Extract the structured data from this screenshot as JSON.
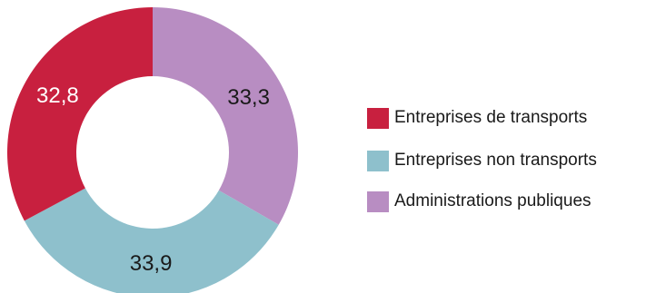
{
  "chart_data": {
    "type": "pie",
    "donut": true,
    "slices": [
      {
        "label": "Administrations publiques",
        "value": 33.3,
        "display": "33,3",
        "color": "#b88dc2",
        "text_color": "#1a1a1a"
      },
      {
        "label": "Entreprises non transports",
        "value": 33.9,
        "display": "33,9",
        "color": "#8ec0cc",
        "text_color": "#1a1a1a"
      },
      {
        "label": "Entreprises de transports",
        "value": 32.8,
        "display": "32,8",
        "color": "#c8203f",
        "text_color": "#ffffff"
      }
    ],
    "legend": {
      "placement": "right",
      "items": [
        {
          "label": "Entreprises de transports",
          "color": "#c8203f"
        },
        {
          "label": "Entreprises non transports",
          "color": "#8ec0cc"
        },
        {
          "label": "Administrations publiques",
          "color": "#b88dc2"
        }
      ]
    }
  }
}
